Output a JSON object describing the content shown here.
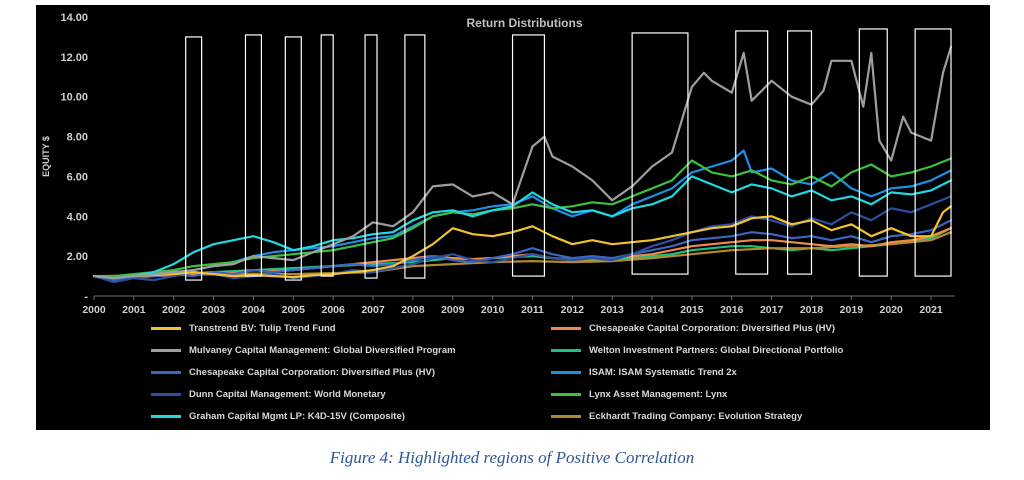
{
  "chart_data": {
    "type": "line",
    "title": "Return Distributions",
    "ylabel": "EQUITY $",
    "xlabel": "",
    "x_range": [
      2000,
      2021.6
    ],
    "ylim": [
      0,
      14
    ],
    "y_ticks": [
      0,
      2,
      4,
      6,
      8,
      10,
      12,
      14
    ],
    "y_tick_labels": [
      "-",
      "2.00",
      "4.00",
      "6.00",
      "8.00",
      "10.00",
      "12.00",
      "14.00"
    ],
    "x_ticks": [
      2000,
      2001,
      2002,
      2003,
      2004,
      2005,
      2006,
      2007,
      2008,
      2009,
      2010,
      2011,
      2012,
      2013,
      2014,
      2015,
      2016,
      2017,
      2018,
      2019,
      2020,
      2021
    ],
    "x_tick_labels": [
      "2000",
      "2001",
      "2002",
      "2003",
      "2004",
      "2005",
      "2006",
      "2007",
      "2008",
      "2009",
      "2010",
      "2011",
      "2012",
      "2013",
      "2014",
      "2015",
      "2016",
      "2017",
      "2018",
      "2019",
      "2020",
      "2021"
    ],
    "highlight_regions": [
      {
        "start": 2002.3,
        "end": 2002.7,
        "top": 13.0,
        "bottom": 0.8
      },
      {
        "start": 2003.8,
        "end": 2004.2,
        "top": 13.1,
        "bottom": 1.0
      },
      {
        "start": 2004.8,
        "end": 2005.2,
        "top": 13.0,
        "bottom": 0.8
      },
      {
        "start": 2005.7,
        "end": 2006.0,
        "top": 13.1,
        "bottom": 1.0
      },
      {
        "start": 2006.8,
        "end": 2007.1,
        "top": 13.1,
        "bottom": 0.9
      },
      {
        "start": 2007.8,
        "end": 2008.3,
        "top": 13.1,
        "bottom": 0.9
      },
      {
        "start": 2010.5,
        "end": 2011.3,
        "top": 13.1,
        "bottom": 1.0
      },
      {
        "start": 2013.5,
        "end": 2014.9,
        "top": 13.2,
        "bottom": 1.1
      },
      {
        "start": 2016.1,
        "end": 2016.9,
        "top": 13.3,
        "bottom": 1.1
      },
      {
        "start": 2017.4,
        "end": 2018.0,
        "top": 13.3,
        "bottom": 1.1
      },
      {
        "start": 2019.2,
        "end": 2019.9,
        "top": 13.4,
        "bottom": 1.0
      },
      {
        "start": 2020.6,
        "end": 2021.5,
        "top": 13.4,
        "bottom": 1.0
      }
    ],
    "series": [
      {
        "name": "Transtrend BV: Tulip Trend Fund",
        "color": "#f2c12e",
        "x": [
          2000,
          2000.5,
          2001,
          2001.5,
          2002,
          2002.5,
          2003,
          2003.5,
          2004,
          2004.5,
          2005,
          2005.5,
          2006,
          2006.5,
          2007,
          2007.5,
          2008,
          2008.5,
          2009,
          2009.5,
          2010,
          2010.5,
          2011,
          2011.5,
          2012,
          2012.5,
          2013,
          2013.5,
          2014,
          2014.5,
          2015,
          2015.5,
          2016,
          2016.5,
          2017,
          2017.5,
          2018,
          2018.5,
          2019,
          2019.5,
          2020,
          2020.5,
          2021,
          2021.3,
          2021.5
        ],
        "values": [
          1.0,
          0.95,
          1.0,
          1.05,
          1.1,
          1.2,
          1.1,
          1.0,
          1.05,
          1.0,
          0.95,
          1.05,
          1.1,
          1.2,
          1.3,
          1.5,
          2.0,
          2.6,
          3.4,
          3.1,
          3.0,
          3.2,
          3.5,
          3.0,
          2.6,
          2.8,
          2.6,
          2.7,
          2.8,
          3.0,
          3.2,
          3.4,
          3.5,
          3.9,
          4.0,
          3.6,
          3.8,
          3.3,
          3.6,
          3.0,
          3.4,
          3.0,
          3.0,
          4.2,
          4.5
        ]
      },
      {
        "name": "Chesapeake Capital Corporation: Diversified Plus (HV)",
        "color": "#f08a4b",
        "x": [
          2000,
          2000.5,
          2001,
          2001.5,
          2002,
          2002.5,
          2003,
          2003.5,
          2004,
          2004.5,
          2005,
          2005.5,
          2006,
          2006.5,
          2007,
          2007.5,
          2008,
          2008.5,
          2009,
          2009.5,
          2010,
          2010.5,
          2011,
          2011.5,
          2012,
          2012.5,
          2013,
          2013.5,
          2014,
          2014.5,
          2015,
          2015.5,
          2016,
          2016.5,
          2017,
          2017.5,
          2018,
          2018.5,
          2019,
          2019.5,
          2020,
          2020.5,
          2021,
          2021.5
        ],
        "values": [
          1.0,
          0.9,
          0.95,
          1.0,
          1.05,
          1.1,
          1.2,
          1.15,
          1.3,
          1.25,
          1.3,
          1.4,
          1.5,
          1.6,
          1.7,
          1.8,
          1.9,
          2.0,
          1.9,
          1.85,
          1.9,
          2.0,
          2.1,
          1.9,
          1.8,
          1.85,
          1.9,
          2.0,
          2.1,
          2.3,
          2.5,
          2.6,
          2.7,
          2.8,
          2.8,
          2.7,
          2.6,
          2.5,
          2.6,
          2.5,
          2.7,
          2.8,
          3.0,
          3.4
        ]
      },
      {
        "name": "Mulvaney Capital Management: Global Diversified Program",
        "color": "#9e9e9e",
        "x": [
          2000,
          2000.5,
          2001,
          2001.5,
          2002,
          2002.5,
          2003,
          2003.5,
          2004,
          2004.5,
          2005,
          2005.5,
          2006,
          2006.5,
          2007,
          2007.5,
          2008,
          2008.5,
          2009,
          2009.5,
          2010,
          2010.5,
          2011,
          2011.3,
          2011.5,
          2012,
          2012.5,
          2013,
          2013.5,
          2014,
          2014.5,
          2015,
          2015.3,
          2015.5,
          2016,
          2016.3,
          2016.5,
          2017,
          2017.5,
          2018,
          2018.3,
          2018.5,
          2019,
          2019.3,
          2019.5,
          2019.7,
          2020,
          2020.3,
          2020.5,
          2021,
          2021.3,
          2021.5
        ],
        "values": [
          1.0,
          0.9,
          1.0,
          1.1,
          1.2,
          1.3,
          1.5,
          1.6,
          2.0,
          1.9,
          1.8,
          2.2,
          2.6,
          3.0,
          3.7,
          3.5,
          4.2,
          5.5,
          5.6,
          5.0,
          5.2,
          4.6,
          7.5,
          8.0,
          7.0,
          6.5,
          5.8,
          4.8,
          5.5,
          6.5,
          7.2,
          10.5,
          11.2,
          10.8,
          10.2,
          12.2,
          9.8,
          10.8,
          10.0,
          9.6,
          10.3,
          11.8,
          11.8,
          9.5,
          12.2,
          7.8,
          6.8,
          9.0,
          8.2,
          7.8,
          11.2,
          12.5
        ]
      },
      {
        "name": "Welton Investment Partners: Global Directional Portfolio",
        "color": "#1fbf7e",
        "x": [
          2000,
          2000.5,
          2001,
          2001.5,
          2002,
          2002.5,
          2003,
          2003.5,
          2004,
          2004.5,
          2005,
          2005.5,
          2006,
          2006.5,
          2007,
          2007.5,
          2008,
          2008.5,
          2009,
          2009.5,
          2010,
          2010.5,
          2011,
          2011.5,
          2012,
          2012.5,
          2013,
          2013.5,
          2014,
          2014.5,
          2015,
          2015.5,
          2016,
          2016.5,
          2017,
          2017.5,
          2018,
          2018.5,
          2019,
          2019.5,
          2020,
          2020.5,
          2021,
          2021.5
        ],
        "values": [
          1.0,
          0.95,
          1.0,
          1.05,
          1.1,
          1.15,
          1.2,
          1.25,
          1.3,
          1.35,
          1.4,
          1.45,
          1.5,
          1.55,
          1.6,
          1.65,
          1.7,
          1.8,
          1.9,
          1.85,
          1.9,
          1.95,
          2.0,
          1.9,
          1.85,
          1.8,
          1.8,
          1.9,
          2.0,
          2.1,
          2.3,
          2.4,
          2.5,
          2.5,
          2.4,
          2.3,
          2.4,
          2.3,
          2.4,
          2.5,
          2.6,
          2.7,
          2.9,
          3.4
        ]
      },
      {
        "name": "Chesapeake Capital Corporation: Diversified Plus (HV)",
        "color": "#3a66c4",
        "x": [
          2000,
          2000.5,
          2001,
          2001.5,
          2002,
          2002.5,
          2003,
          2003.5,
          2004,
          2004.5,
          2005,
          2005.5,
          2006,
          2006.5,
          2007,
          2007.5,
          2008,
          2008.5,
          2009,
          2009.5,
          2010,
          2010.5,
          2011,
          2011.5,
          2012,
          2012.5,
          2013,
          2013.5,
          2014,
          2014.5,
          2015,
          2015.5,
          2016,
          2016.5,
          2017,
          2017.5,
          2018,
          2018.5,
          2019,
          2019.5,
          2020,
          2020.5,
          2021,
          2021.5
        ],
        "values": [
          1.0,
          0.8,
          0.9,
          1.0,
          1.1,
          1.0,
          1.2,
          1.1,
          1.3,
          1.2,
          1.3,
          1.4,
          1.5,
          1.6,
          1.5,
          1.6,
          1.8,
          2.0,
          1.8,
          1.7,
          1.9,
          2.1,
          2.4,
          2.1,
          1.9,
          2.0,
          1.9,
          2.1,
          2.3,
          2.5,
          2.8,
          2.9,
          3.0,
          3.2,
          3.1,
          2.9,
          3.0,
          2.8,
          3.0,
          2.7,
          3.0,
          3.1,
          3.3,
          3.8
        ]
      },
      {
        "name": "ISAM: ISAM Systematic Trend 2x",
        "color": "#1e8fe8",
        "x": [
          2001,
          2001.5,
          2002,
          2002.5,
          2003,
          2003.5,
          2004,
          2004.5,
          2005,
          2005.5,
          2006,
          2006.5,
          2007,
          2007.5,
          2008,
          2008.5,
          2009,
          2009.5,
          2010,
          2010.5,
          2011,
          2011.5,
          2012,
          2012.5,
          2013,
          2013.5,
          2014,
          2014.5,
          2015,
          2015.5,
          2016,
          2016.3,
          2016.5,
          2017,
          2017.5,
          2018,
          2018.5,
          2019,
          2019.5,
          2020,
          2020.5,
          2021,
          2021.5
        ],
        "values": [
          1.0,
          1.1,
          1.2,
          1.3,
          1.5,
          1.7,
          2.0,
          2.2,
          2.3,
          2.4,
          2.5,
          2.7,
          2.9,
          3.0,
          3.5,
          4.0,
          4.2,
          4.3,
          4.5,
          4.6,
          5.0,
          4.4,
          4.0,
          4.3,
          4.0,
          4.6,
          5.0,
          5.4,
          6.2,
          6.5,
          6.8,
          7.3,
          6.2,
          6.4,
          5.8,
          5.6,
          6.2,
          5.4,
          5.0,
          5.4,
          5.5,
          5.8,
          6.3
        ]
      },
      {
        "name": "Dunn Capital Management: World Monetary",
        "color": "#2c4f9e",
        "x": [
          2000,
          2000.5,
          2001,
          2001.5,
          2002,
          2002.5,
          2003,
          2003.5,
          2004,
          2004.5,
          2005,
          2005.5,
          2006,
          2006.5,
          2007,
          2007.5,
          2008,
          2008.5,
          2009,
          2009.5,
          2010,
          2010.5,
          2011,
          2011.5,
          2012,
          2012.5,
          2013,
          2013.5,
          2014,
          2014.5,
          2015,
          2015.5,
          2016,
          2016.5,
          2017,
          2017.5,
          2018,
          2018.5,
          2019,
          2019.5,
          2020,
          2020.5,
          2021,
          2021.5
        ],
        "values": [
          1.0,
          0.7,
          0.9,
          0.8,
          1.0,
          1.2,
          1.1,
          0.9,
          1.0,
          1.1,
          0.9,
          1.0,
          1.1,
          1.3,
          1.2,
          1.4,
          1.6,
          1.9,
          2.1,
          1.8,
          1.7,
          1.9,
          2.1,
          1.9,
          1.8,
          1.9,
          1.8,
          2.1,
          2.5,
          2.8,
          3.2,
          3.5,
          3.6,
          4.0,
          3.8,
          3.5,
          3.9,
          3.6,
          4.2,
          3.8,
          4.4,
          4.2,
          4.6,
          5.0
        ]
      },
      {
        "name": "Lynx Asset Management: Lynx",
        "color": "#3fbf3f",
        "x": [
          2000,
          2000.5,
          2001,
          2001.5,
          2002,
          2002.5,
          2003,
          2003.5,
          2004,
          2004.5,
          2005,
          2005.5,
          2006,
          2006.5,
          2007,
          2007.5,
          2008,
          2008.5,
          2009,
          2009.5,
          2010,
          2010.5,
          2011,
          2011.5,
          2012,
          2012.5,
          2013,
          2013.5,
          2014,
          2014.5,
          2015,
          2015.5,
          2016,
          2016.5,
          2017,
          2017.5,
          2018,
          2018.5,
          2019,
          2019.5,
          2020,
          2020.5,
          2021,
          2021.5
        ],
        "values": [
          1.0,
          1.0,
          1.1,
          1.2,
          1.3,
          1.5,
          1.6,
          1.7,
          1.9,
          2.0,
          2.1,
          2.2,
          2.3,
          2.5,
          2.7,
          2.9,
          3.4,
          4.0,
          4.2,
          4.1,
          4.3,
          4.4,
          4.6,
          4.4,
          4.5,
          4.7,
          4.6,
          5.0,
          5.4,
          5.8,
          6.8,
          6.2,
          6.0,
          6.3,
          5.8,
          5.6,
          6.0,
          5.5,
          6.2,
          6.6,
          6.0,
          6.2,
          6.5,
          6.9
        ]
      },
      {
        "name": "Graham Capital Mgmt LP: K4D-15V (Composite)",
        "color": "#22d8e0",
        "x": [
          2000,
          2000.5,
          2001,
          2001.5,
          2002,
          2002.5,
          2003,
          2003.5,
          2004,
          2004.5,
          2005,
          2005.5,
          2006,
          2006.5,
          2007,
          2007.5,
          2008,
          2008.5,
          2009,
          2009.5,
          2010,
          2010.5,
          2011,
          2011.5,
          2012,
          2012.5,
          2013,
          2013.5,
          2014,
          2014.5,
          2015,
          2015.5,
          2016,
          2016.5,
          2017,
          2017.5,
          2018,
          2018.5,
          2019,
          2019.5,
          2020,
          2020.5,
          2021,
          2021.5
        ],
        "values": [
          1.0,
          0.9,
          1.0,
          1.2,
          1.6,
          2.2,
          2.6,
          2.8,
          3.0,
          2.7,
          2.3,
          2.5,
          2.8,
          2.9,
          3.1,
          3.2,
          3.8,
          4.2,
          4.3,
          4.0,
          4.3,
          4.5,
          5.2,
          4.6,
          4.2,
          4.3,
          4.0,
          4.4,
          4.6,
          5.0,
          6.0,
          5.6,
          5.2,
          5.6,
          5.4,
          5.0,
          5.3,
          4.8,
          5.0,
          4.6,
          5.2,
          5.1,
          5.3,
          5.8
        ]
      },
      {
        "name": "Eckhardt Trading Company: Evolution Strategy",
        "color": "#b08a2a",
        "x": [
          2000,
          2001,
          2002,
          2003,
          2004,
          2005,
          2006,
          2007,
          2008,
          2009,
          2010,
          2011,
          2012,
          2013,
          2014,
          2015,
          2016,
          2017,
          2018,
          2019,
          2020,
          2021,
          2021.5
        ],
        "values": [
          1.0,
          1.02,
          1.05,
          1.1,
          1.12,
          1.1,
          1.15,
          1.2,
          1.5,
          1.6,
          1.7,
          1.75,
          1.7,
          1.75,
          1.9,
          2.1,
          2.3,
          2.4,
          2.4,
          2.5,
          2.6,
          2.8,
          3.2
        ]
      }
    ]
  },
  "caption": "Figure 4: Highlighted regions of Positive Correlation"
}
